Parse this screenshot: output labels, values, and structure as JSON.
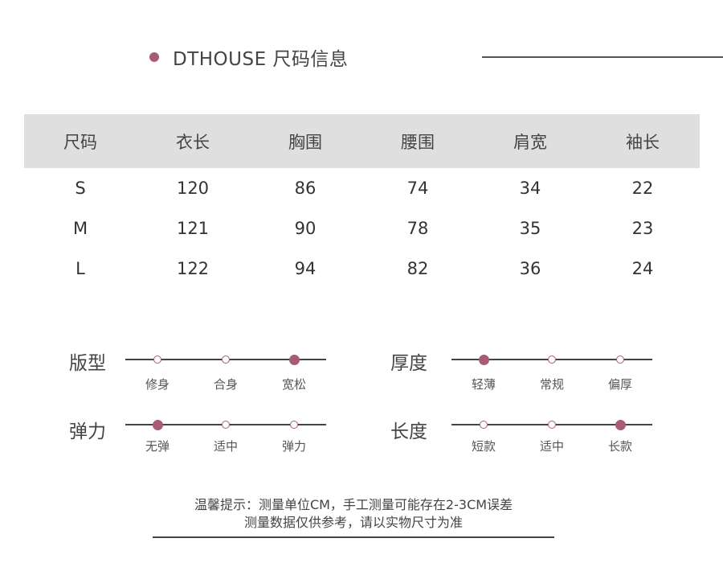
{
  "header": {
    "title": "DTHOUSE  尺码信息",
    "accent_color": "#a85a78"
  },
  "size_table": {
    "columns": [
      "尺码",
      "衣长",
      "胸围",
      "腰围",
      "肩宽",
      "袖长"
    ],
    "rows": [
      [
        "S",
        "120",
        "86",
        "74",
        "34",
        "22"
      ],
      [
        "M",
        "121",
        "90",
        "78",
        "35",
        "23"
      ],
      [
        "L",
        "122",
        "94",
        "82",
        "36",
        "24"
      ]
    ]
  },
  "attributes": [
    {
      "label": "版型",
      "options": [
        "修身",
        "合身",
        "宽松"
      ],
      "selected": 2
    },
    {
      "label": "厚度",
      "options": [
        "轻薄",
        "常规",
        "偏厚"
      ],
      "selected": 0
    },
    {
      "label": "弹力",
      "options": [
        "无弹",
        "适中",
        "弹力"
      ],
      "selected": 0
    },
    {
      "label": "长度",
      "options": [
        "短款",
        "适中",
        "长款"
      ],
      "selected": 2
    }
  ],
  "note": {
    "line1": "温馨提示：测量单位CM，手工测量可能存在2-3CM误差",
    "line2": "测量数据仅供参考，请以实物尺寸为准"
  }
}
